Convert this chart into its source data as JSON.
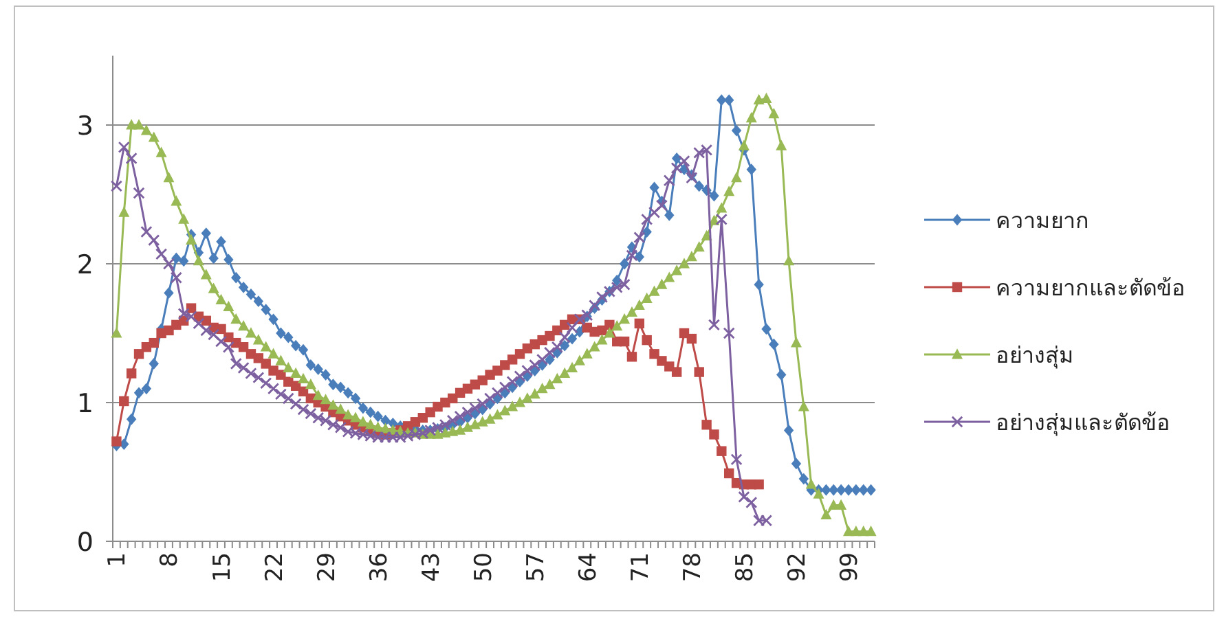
{
  "chart_data": {
    "type": "line",
    "categories": [
      "1",
      null,
      null,
      null,
      null,
      null,
      null,
      "8",
      null,
      null,
      null,
      null,
      null,
      null,
      "15",
      null,
      null,
      null,
      null,
      null,
      null,
      "22",
      null,
      null,
      null,
      null,
      null,
      null,
      "29",
      null,
      null,
      null,
      null,
      null,
      null,
      "36",
      null,
      null,
      null,
      null,
      null,
      null,
      "43",
      null,
      null,
      null,
      null,
      null,
      null,
      "50",
      null,
      null,
      null,
      null,
      null,
      null,
      "57",
      null,
      null,
      null,
      null,
      null,
      null,
      "64",
      null,
      null,
      null,
      null,
      null,
      null,
      "71",
      null,
      null,
      null,
      null,
      null,
      null,
      "78",
      null,
      null,
      null,
      null,
      null,
      null,
      "85",
      null,
      null,
      null,
      null,
      null,
      null,
      "92",
      null,
      null,
      null,
      null,
      null,
      null,
      "99",
      null,
      null,
      null
    ],
    "ylim": [
      0,
      3.5
    ],
    "yticks": [
      0,
      1,
      2,
      3
    ],
    "grid": "y",
    "legend": "right",
    "line_style": "solid",
    "series": [
      {
        "name": "ความยาก",
        "color": "#4a7ebb",
        "marker": "diamond",
        "values": [
          0.69,
          0.7,
          0.88,
          1.07,
          1.1,
          1.28,
          1.53,
          1.79,
          2.04,
          2.02,
          2.21,
          2.08,
          2.22,
          2.04,
          2.16,
          2.03,
          1.9,
          1.83,
          1.78,
          1.73,
          1.67,
          1.6,
          1.5,
          1.47,
          1.41,
          1.38,
          1.27,
          1.24,
          1.2,
          1.13,
          1.11,
          1.07,
          1.03,
          0.96,
          0.93,
          0.9,
          0.87,
          0.85,
          0.83,
          0.82,
          0.81,
          0.8,
          0.8,
          0.81,
          0.82,
          0.84,
          0.86,
          0.89,
          0.92,
          0.95,
          0.99,
          1.03,
          1.07,
          1.11,
          1.15,
          1.19,
          1.23,
          1.27,
          1.31,
          1.36,
          1.41,
          1.46,
          1.51,
          1.62,
          1.68,
          1.74,
          1.8,
          1.88,
          2.0,
          2.12,
          2.05,
          2.23,
          2.55,
          2.45,
          2.35,
          2.76,
          2.68,
          2.64,
          2.56,
          2.53,
          2.49,
          3.18,
          3.18,
          2.96,
          2.82,
          2.68,
          1.85,
          1.53,
          1.42,
          1.2,
          0.8,
          0.56,
          0.45,
          0.37,
          0.37,
          0.37,
          0.37,
          0.37,
          0.37,
          0.37,
          0.37,
          0.37
        ]
      },
      {
        "name": "ความยากและตัดข้อ",
        "color": "#be4b48",
        "marker": "square",
        "values": [
          0.72,
          1.01,
          1.21,
          1.35,
          1.4,
          1.43,
          1.5,
          1.52,
          1.56,
          1.59,
          1.68,
          1.62,
          1.59,
          1.54,
          1.53,
          1.47,
          1.43,
          1.4,
          1.35,
          1.32,
          1.28,
          1.23,
          1.2,
          1.15,
          1.12,
          1.08,
          1.03,
          1.0,
          0.97,
          0.93,
          0.9,
          0.87,
          0.84,
          0.82,
          0.8,
          0.78,
          0.77,
          0.78,
          0.8,
          0.83,
          0.86,
          0.89,
          0.93,
          0.97,
          1.0,
          1.03,
          1.07,
          1.1,
          1.13,
          1.16,
          1.2,
          1.23,
          1.27,
          1.31,
          1.35,
          1.39,
          1.42,
          1.45,
          1.48,
          1.52,
          1.56,
          1.6,
          1.6,
          1.54,
          1.51,
          1.52,
          1.56,
          1.44,
          1.44,
          1.33,
          1.57,
          1.45,
          1.35,
          1.3,
          1.26,
          1.22,
          1.5,
          1.46,
          1.22,
          0.84,
          0.77,
          0.65,
          0.49,
          0.42,
          0.41,
          0.41,
          0.41,
          null,
          null,
          null,
          null,
          null,
          null,
          null,
          null,
          null,
          null,
          null,
          null,
          null,
          null,
          null
        ]
      },
      {
        "name": "อย่างสุ่ม",
        "color": "#98b954",
        "marker": "triangle",
        "values": [
          1.5,
          2.37,
          3.0,
          3.0,
          2.96,
          2.91,
          2.8,
          2.62,
          2.45,
          2.32,
          2.17,
          2.02,
          1.92,
          1.82,
          1.74,
          1.69,
          1.6,
          1.55,
          1.5,
          1.45,
          1.4,
          1.35,
          1.3,
          1.25,
          1.21,
          1.17,
          1.13,
          1.05,
          1.02,
          0.98,
          0.95,
          0.91,
          0.89,
          0.86,
          0.84,
          0.82,
          0.81,
          0.8,
          0.79,
          0.78,
          0.78,
          0.77,
          0.77,
          0.77,
          0.78,
          0.79,
          0.8,
          0.82,
          0.84,
          0.86,
          0.88,
          0.91,
          0.94,
          0.97,
          1.0,
          1.03,
          1.06,
          1.1,
          1.13,
          1.17,
          1.21,
          1.25,
          1.3,
          1.35,
          1.4,
          1.45,
          1.5,
          1.55,
          1.6,
          1.65,
          1.7,
          1.75,
          1.8,
          1.85,
          1.9,
          1.95,
          2.0,
          2.05,
          2.12,
          2.2,
          2.31,
          2.4,
          2.52,
          2.62,
          2.85,
          3.05,
          3.18,
          3.19,
          3.08,
          2.85,
          2.02,
          1.43,
          0.97,
          0.41,
          0.34,
          0.19,
          0.26,
          0.26,
          0.07,
          0.07,
          0.07,
          0.07
        ]
      },
      {
        "name": "อย่างสุ่มและตัดข้อ",
        "color": "#7d60a0",
        "marker": "cross",
        "values": [
          2.56,
          2.84,
          2.76,
          2.51,
          2.23,
          2.17,
          2.07,
          2.0,
          1.9,
          1.64,
          1.62,
          1.57,
          1.52,
          1.49,
          1.44,
          1.4,
          1.28,
          1.25,
          1.21,
          1.18,
          1.14,
          1.1,
          1.06,
          1.03,
          0.99,
          0.95,
          0.92,
          0.89,
          0.87,
          0.84,
          0.82,
          0.79,
          0.78,
          0.77,
          0.76,
          0.75,
          0.75,
          0.75,
          0.75,
          0.76,
          0.77,
          0.78,
          0.8,
          0.82,
          0.84,
          0.87,
          0.9,
          0.93,
          0.96,
          0.99,
          1.03,
          1.07,
          1.11,
          1.15,
          1.19,
          1.23,
          1.27,
          1.31,
          1.36,
          1.4,
          1.47,
          1.54,
          1.6,
          1.63,
          1.7,
          1.76,
          1.8,
          1.83,
          1.85,
          2.06,
          2.19,
          2.32,
          2.37,
          2.42,
          2.6,
          2.69,
          2.74,
          2.62,
          2.8,
          2.82,
          1.56,
          2.32,
          1.5,
          0.59,
          0.32,
          0.28,
          0.15,
          0.15,
          null,
          null,
          null,
          null,
          null,
          null,
          null,
          null,
          null,
          null,
          null,
          null,
          null,
          null
        ]
      }
    ]
  }
}
